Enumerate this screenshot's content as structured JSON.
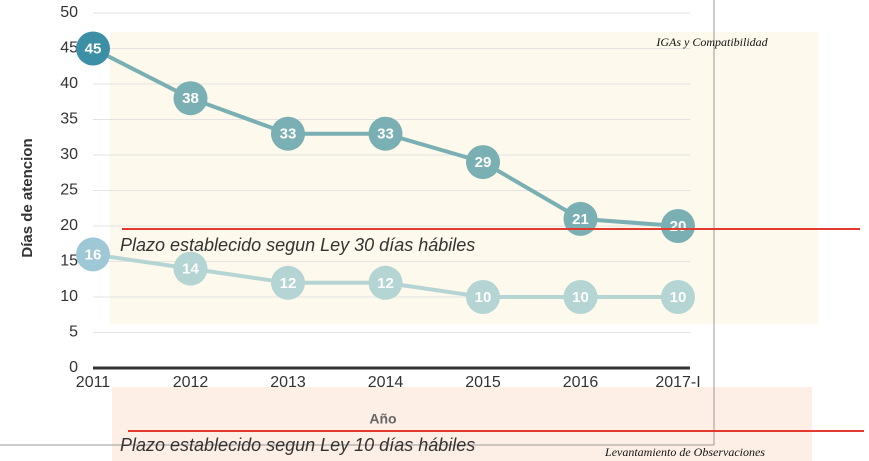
{
  "chart_data": {
    "type": "line",
    "y_label": "Días  de atencion",
    "x_label": "Año",
    "categories": [
      "2011",
      "2012",
      "2013",
      "2014",
      "2015",
      "2016",
      "2017-I"
    ],
    "series": [
      {
        "name": "IGAs y Compatibilidad",
        "color": "#7aafb3",
        "point_colors": [
          "#3d8fa6",
          "#7aafb3",
          "#7aafb3",
          "#7aafb3",
          "#7aafb3",
          "#7aafb3",
          "#7aafb3"
        ],
        "values": [
          45,
          38,
          33,
          33,
          29,
          21,
          20
        ]
      },
      {
        "name": "Levantamiento de Observaciones",
        "color": "#b5d5d5",
        "point_colors": [
          "#9ec8d6",
          "#b5d5d5",
          "#b5d5d5",
          "#b5d5d5",
          "#b5d5d5",
          "#b5d5d5",
          "#b5d5d5"
        ],
        "values": [
          16,
          14,
          12,
          12,
          10,
          10,
          10
        ]
      }
    ],
    "ylim": [
      0,
      50
    ],
    "yticks": [
      0,
      5,
      10,
      15,
      20,
      25,
      30,
      35,
      40,
      45,
      50
    ],
    "grid": true,
    "annotations": [
      "Plazo establecido segun Ley 30 días hábiles",
      "Plazo establecido segun Ley 10 días hábiles"
    ]
  }
}
